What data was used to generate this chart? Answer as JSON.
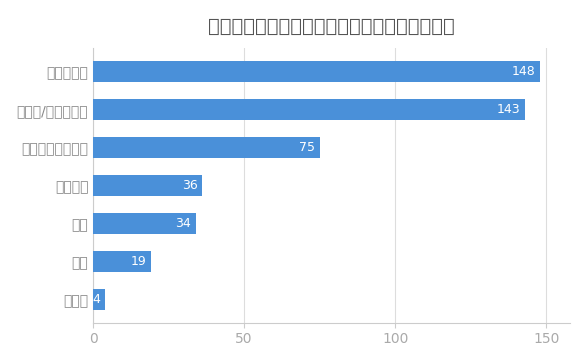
{
  "title": "手帳デコでよく使うグッズを教えてください。",
  "categories": [
    "その他",
    "写真",
    "付箋",
    "スタンプ",
    "マスキングテープ",
    "シール/ステッカー",
    "カラーペン"
  ],
  "values": [
    4,
    19,
    34,
    36,
    75,
    143,
    148
  ],
  "bar_color": "#4A90D9",
  "label_color": "#ffffff",
  "title_color": "#555555",
  "axis_label_color": "#888888",
  "tick_color": "#aaaaaa",
  "background_color": "#ffffff",
  "xlim": [
    0,
    158
  ],
  "xticks": [
    0,
    50,
    100,
    150
  ],
  "bar_height": 0.55,
  "title_fontsize": 14,
  "label_fontsize": 10,
  "tick_fontsize": 10,
  "value_fontsize": 9
}
